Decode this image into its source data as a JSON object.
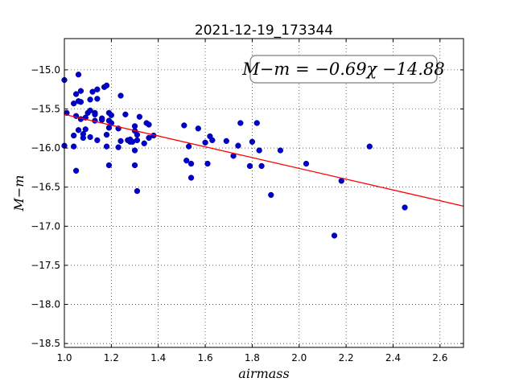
{
  "chart_data": {
    "type": "scatter",
    "title": "2021-12-19_173344",
    "xlabel": "airmass",
    "ylabel": "M−m",
    "xlim": [
      1.0,
      2.7
    ],
    "ylim": [
      -18.55,
      -14.6
    ],
    "y_inverted": true,
    "grid": true,
    "x_ticks": [
      1.0,
      1.2,
      1.4,
      1.6,
      1.8,
      2.0,
      2.2,
      2.4,
      2.6
    ],
    "x_tick_labels": [
      "1.0",
      "1.2",
      "1.4",
      "1.6",
      "1.8",
      "2.0",
      "2.2",
      "2.4",
      "2.6"
    ],
    "y_ticks": [
      -15.0,
      -15.5,
      -16.0,
      -16.5,
      -17.0,
      -17.5,
      -18.0,
      -18.5
    ],
    "y_tick_labels": [
      "−15.0",
      "−15.5",
      "−16.0",
      "−16.5",
      "−17.0",
      "−17.5",
      "−18.0",
      "−18.5"
    ],
    "annotation": "M−m = −0.69χ −14.88",
    "fit": {
      "slope": -0.69,
      "intercept": -14.88,
      "color": "#ff0000"
    },
    "point_color": "#0000cc",
    "points": [
      [
        1.0,
        -15.13
      ],
      [
        1.0,
        -15.97
      ],
      [
        1.01,
        -15.55
      ],
      [
        1.04,
        -15.43
      ],
      [
        1.04,
        -15.84
      ],
      [
        1.04,
        -15.98
      ],
      [
        1.05,
        -16.29
      ],
      [
        1.05,
        -15.59
      ],
      [
        1.05,
        -15.31
      ],
      [
        1.06,
        -15.4
      ],
      [
        1.06,
        -15.06
      ],
      [
        1.06,
        -15.77
      ],
      [
        1.07,
        -15.27
      ],
      [
        1.07,
        -15.41
      ],
      [
        1.07,
        -15.63
      ],
      [
        1.08,
        -15.87
      ],
      [
        1.08,
        -15.82
      ],
      [
        1.09,
        -15.76
      ],
      [
        1.09,
        -15.61
      ],
      [
        1.1,
        -15.55
      ],
      [
        1.11,
        -15.86
      ],
      [
        1.11,
        -15.52
      ],
      [
        1.11,
        -15.38
      ],
      [
        1.12,
        -15.28
      ],
      [
        1.13,
        -15.55
      ],
      [
        1.13,
        -15.57
      ],
      [
        1.13,
        -15.65
      ],
      [
        1.14,
        -15.9
      ],
      [
        1.14,
        -15.37
      ],
      [
        1.14,
        -15.25
      ],
      [
        1.16,
        -15.62
      ],
      [
        1.16,
        -15.64
      ],
      [
        1.17,
        -15.22
      ],
      [
        1.18,
        -15.98
      ],
      [
        1.18,
        -15.83
      ],
      [
        1.18,
        -15.2
      ],
      [
        1.19,
        -15.74
      ],
      [
        1.19,
        -15.55
      ],
      [
        1.19,
        -15.65
      ],
      [
        1.2,
        -15.58
      ],
      [
        1.2,
        -15.68
      ],
      [
        1.19,
        -16.22
      ],
      [
        1.23,
        -15.99
      ],
      [
        1.23,
        -15.75
      ],
      [
        1.24,
        -15.33
      ],
      [
        1.24,
        -15.91
      ],
      [
        1.26,
        -15.57
      ],
      [
        1.27,
        -15.9
      ],
      [
        1.28,
        -15.89
      ],
      [
        1.28,
        -15.92
      ],
      [
        1.29,
        -15.92
      ],
      [
        1.3,
        -15.72
      ],
      [
        1.3,
        -15.78
      ],
      [
        1.3,
        -16.03
      ],
      [
        1.3,
        -16.22
      ],
      [
        1.31,
        -16.55
      ],
      [
        1.31,
        -15.9
      ],
      [
        1.31,
        -15.83
      ],
      [
        1.32,
        -15.6
      ],
      [
        1.34,
        -15.94
      ],
      [
        1.35,
        -15.68
      ],
      [
        1.36,
        -15.7
      ],
      [
        1.36,
        -15.87
      ],
      [
        1.38,
        -15.84
      ],
      [
        1.51,
        -15.71
      ],
      [
        1.52,
        -16.16
      ],
      [
        1.53,
        -15.98
      ],
      [
        1.54,
        -16.38
      ],
      [
        1.54,
        -16.2
      ],
      [
        1.57,
        -15.75
      ],
      [
        1.6,
        -15.93
      ],
      [
        1.61,
        -16.2
      ],
      [
        1.62,
        -15.85
      ],
      [
        1.63,
        -15.9
      ],
      [
        1.69,
        -15.91
      ],
      [
        1.72,
        -16.1
      ],
      [
        1.74,
        -15.97
      ],
      [
        1.75,
        -15.68
      ],
      [
        1.79,
        -16.23
      ],
      [
        1.8,
        -15.92
      ],
      [
        1.82,
        -15.68
      ],
      [
        1.83,
        -16.03
      ],
      [
        1.84,
        -16.23
      ],
      [
        1.88,
        -16.6
      ],
      [
        1.92,
        -16.03
      ],
      [
        2.03,
        -16.2
      ],
      [
        2.15,
        -17.12
      ],
      [
        2.18,
        -16.42
      ],
      [
        2.3,
        -15.98
      ],
      [
        2.45,
        -16.76
      ]
    ]
  }
}
